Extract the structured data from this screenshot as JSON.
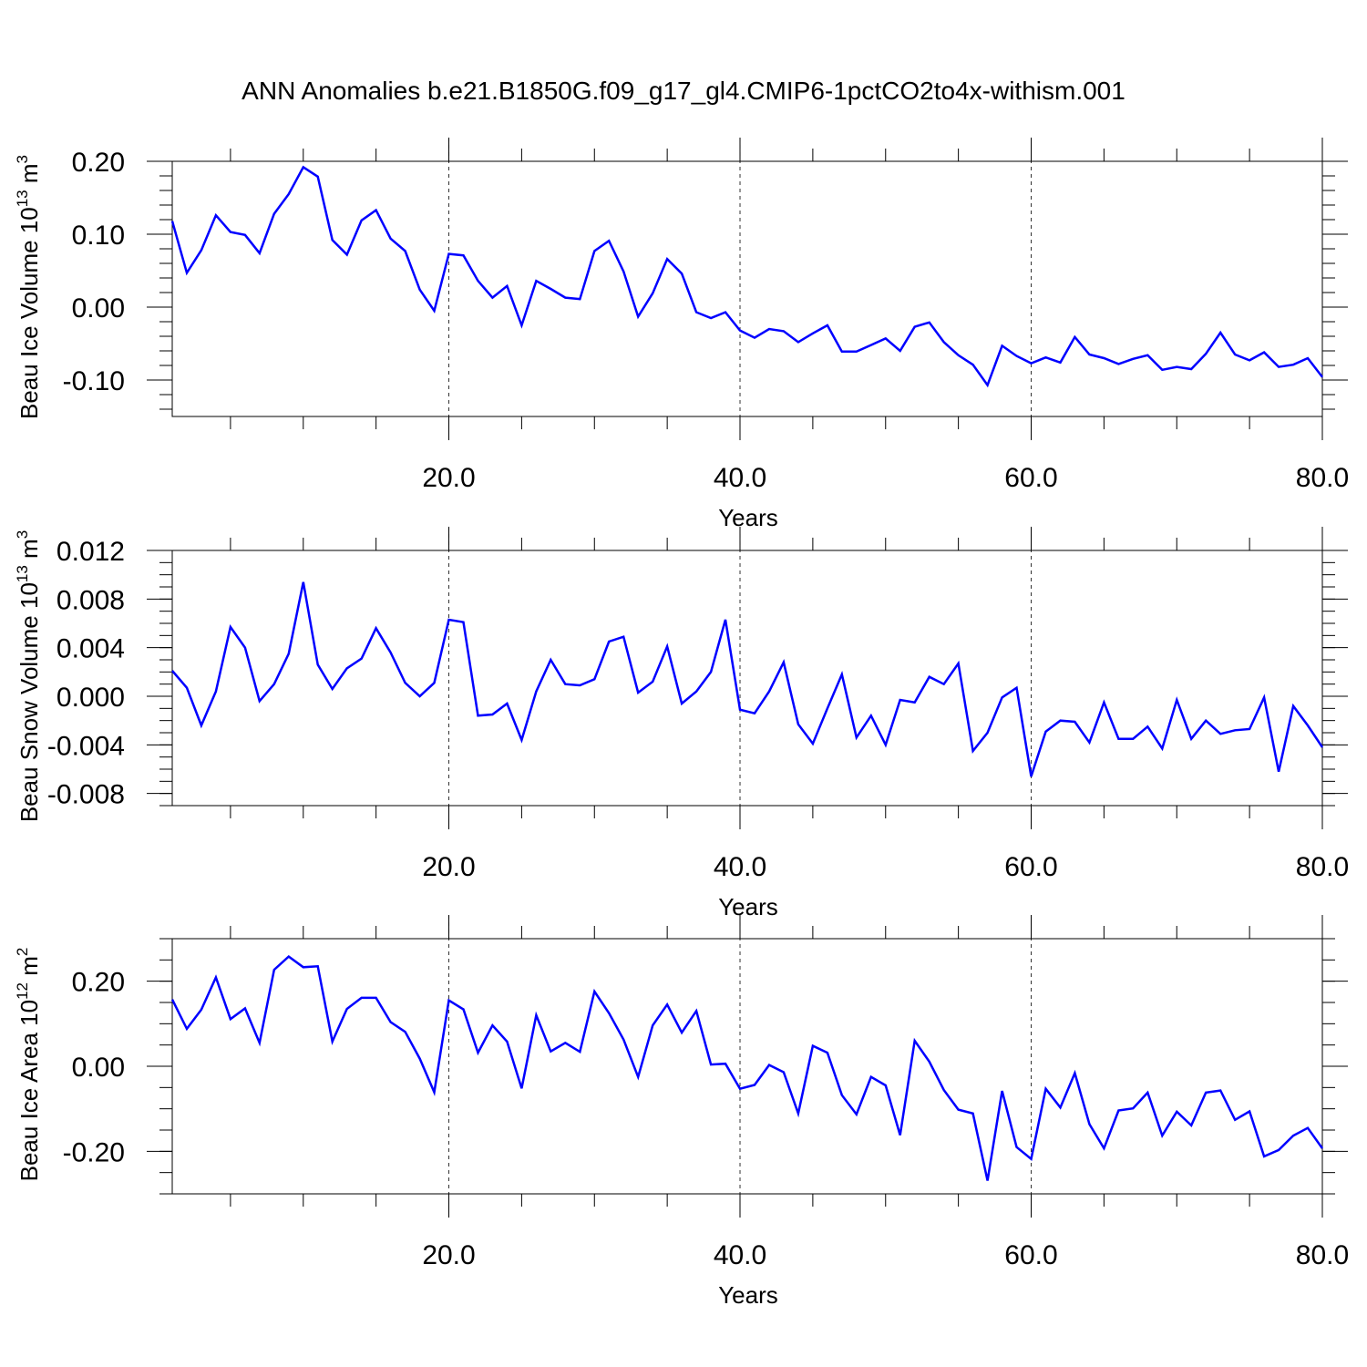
{
  "title": "ANN Anomalies b.e21.B1850G.f09_g17_gl4.CMIP6-1pctCO2to4x-withism.001",
  "colors": {
    "series": "#0000ff",
    "axis": "#000000",
    "grid": "#333333"
  },
  "chart_data": [
    {
      "type": "line",
      "ylabel": "Beau Ice Volume 10",
      "ylabel_exp": "13",
      "ylabel_unit": " m",
      "ylabel_unit_exp": "3",
      "xlabel": "Years",
      "xlim": [
        1,
        80
      ],
      "ylim": [
        -0.15,
        0.2
      ],
      "x_ticks": [
        20,
        40,
        60,
        80
      ],
      "x_tick_labels": [
        "20.0",
        "40.0",
        "60.0",
        "80.0"
      ],
      "y_ticks": [
        0.2,
        0.1,
        0.0,
        -0.1
      ],
      "y_tick_labels": [
        "0.20",
        "0.10",
        "0.00",
        "-0.10"
      ],
      "y_minor_step": 0.02,
      "x_minor_step": 5,
      "vgrid": [
        20,
        40,
        60
      ],
      "x": [
        1,
        2,
        3,
        4,
        5,
        6,
        7,
        8,
        9,
        10,
        11,
        12,
        13,
        14,
        15,
        16,
        17,
        18,
        19,
        20,
        21,
        22,
        23,
        24,
        25,
        26,
        27,
        28,
        29,
        30,
        31,
        32,
        33,
        34,
        35,
        36,
        37,
        38,
        39,
        40,
        41,
        42,
        43,
        44,
        45,
        46,
        47,
        48,
        49,
        50,
        51,
        52,
        53,
        54,
        55,
        56,
        57,
        58,
        59,
        60,
        61,
        62,
        63,
        64,
        65,
        66,
        67,
        68,
        69,
        70,
        71,
        72,
        73,
        74,
        75,
        76,
        77,
        78,
        79,
        80
      ],
      "values": [
        0.118,
        0.047,
        0.078,
        0.126,
        0.103,
        0.099,
        0.074,
        0.128,
        0.155,
        0.192,
        0.179,
        0.092,
        0.072,
        0.119,
        0.133,
        0.094,
        0.077,
        0.024,
        -0.005,
        0.073,
        0.071,
        0.036,
        0.013,
        0.029,
        -0.025,
        0.036,
        0.025,
        0.013,
        0.011,
        0.077,
        0.091,
        0.049,
        -0.013,
        0.019,
        0.066,
        0.046,
        -0.007,
        -0.015,
        -0.007,
        -0.032,
        -0.042,
        -0.03,
        -0.033,
        -0.048,
        -0.036,
        -0.025,
        -0.061,
        -0.061,
        -0.052,
        -0.043,
        -0.06,
        -0.027,
        -0.021,
        -0.048,
        -0.066,
        -0.079,
        -0.107,
        -0.053,
        -0.067,
        -0.077,
        -0.069,
        -0.076,
        -0.041,
        -0.065,
        -0.07,
        -0.078,
        -0.071,
        -0.066,
        -0.086,
        -0.082,
        -0.085,
        -0.064,
        -0.035,
        -0.065,
        -0.073,
        -0.062,
        -0.082,
        -0.079,
        -0.07,
        -0.096
      ]
    },
    {
      "type": "line",
      "ylabel": "Beau Snow Volume 10",
      "ylabel_exp": "13",
      "ylabel_unit": " m",
      "ylabel_unit_exp": "3",
      "xlabel": "Years",
      "xlim": [
        1,
        80
      ],
      "ylim": [
        -0.009,
        0.012
      ],
      "x_ticks": [
        20,
        40,
        60,
        80
      ],
      "x_tick_labels": [
        "20.0",
        "40.0",
        "60.0",
        "80.0"
      ],
      "y_ticks": [
        0.012,
        0.008,
        0.004,
        0.0,
        -0.004,
        -0.008
      ],
      "y_tick_labels": [
        "0.012",
        "0.008",
        "0.004",
        "0.000",
        "-0.004",
        "-0.008"
      ],
      "y_minor_step": 0.001,
      "x_minor_step": 5,
      "vgrid": [
        20,
        40,
        60
      ],
      "x": [
        1,
        2,
        3,
        4,
        5,
        6,
        7,
        8,
        9,
        10,
        11,
        12,
        13,
        14,
        15,
        16,
        17,
        18,
        19,
        20,
        21,
        22,
        23,
        24,
        25,
        26,
        27,
        28,
        29,
        30,
        31,
        32,
        33,
        34,
        35,
        36,
        37,
        38,
        39,
        40,
        41,
        42,
        43,
        44,
        45,
        46,
        47,
        48,
        49,
        50,
        51,
        52,
        53,
        54,
        55,
        56,
        57,
        58,
        59,
        60,
        61,
        62,
        63,
        64,
        65,
        66,
        67,
        68,
        69,
        70,
        71,
        72,
        73,
        74,
        75,
        76,
        77,
        78,
        79,
        80
      ],
      "values": [
        0.0021,
        0.0007,
        -0.0024,
        0.0004,
        0.0057,
        0.004,
        -0.0004,
        0.001,
        0.0035,
        0.0094,
        0.0026,
        0.0006,
        0.0023,
        0.0031,
        0.0056,
        0.0036,
        0.0011,
        0.0,
        0.0011,
        0.0063,
        0.0061,
        -0.0016,
        -0.0015,
        -0.0006,
        -0.0036,
        0.0004,
        0.003,
        0.001,
        0.0009,
        0.0014,
        0.0045,
        0.0049,
        0.0003,
        0.0012,
        0.0041,
        -0.0006,
        0.0004,
        0.002,
        0.0063,
        -0.0011,
        -0.0014,
        0.0004,
        0.0028,
        -0.0023,
        -0.0039,
        -0.001,
        0.0018,
        -0.0034,
        -0.0016,
        -0.004,
        -0.0003,
        -0.0005,
        0.0016,
        0.001,
        0.0027,
        -0.0045,
        -0.003,
        -0.0001,
        0.0007,
        -0.0066,
        -0.0029,
        -0.002,
        -0.0021,
        -0.0038,
        -0.0005,
        -0.0035,
        -0.0035,
        -0.0025,
        -0.0043,
        -0.0003,
        -0.0035,
        -0.002,
        -0.0031,
        -0.0028,
        -0.0027,
        -0.0001,
        -0.0062,
        -0.0008,
        -0.0024,
        -0.0042
      ]
    },
    {
      "type": "line",
      "ylabel": "Beau Ice Area 10",
      "ylabel_exp": "12",
      "ylabel_unit": " m",
      "ylabel_unit_exp": "2",
      "xlabel": "Years",
      "xlim": [
        1,
        80
      ],
      "ylim": [
        -0.3,
        0.3
      ],
      "x_ticks": [
        20,
        40,
        60,
        80
      ],
      "x_tick_labels": [
        "20.0",
        "40.0",
        "60.0",
        "80.0"
      ],
      "y_ticks": [
        0.2,
        0.0,
        -0.2
      ],
      "y_tick_labels": [
        "0.20",
        "0.00",
        "-0.20"
      ],
      "y_minor_step": 0.05,
      "x_minor_step": 5,
      "vgrid": [
        20,
        40,
        60
      ],
      "x": [
        1,
        2,
        3,
        4,
        5,
        6,
        7,
        8,
        9,
        10,
        11,
        12,
        13,
        14,
        15,
        16,
        17,
        18,
        19,
        20,
        21,
        22,
        23,
        24,
        25,
        26,
        27,
        28,
        29,
        30,
        31,
        32,
        33,
        34,
        35,
        36,
        37,
        38,
        39,
        40,
        41,
        42,
        43,
        44,
        45,
        46,
        47,
        48,
        49,
        50,
        51,
        52,
        53,
        54,
        55,
        56,
        57,
        58,
        59,
        60,
        61,
        62,
        63,
        64,
        65,
        66,
        67,
        68,
        69,
        70,
        71,
        72,
        73,
        74,
        75,
        76,
        77,
        78,
        79,
        80
      ],
      "values": [
        0.157,
        0.088,
        0.133,
        0.209,
        0.111,
        0.136,
        0.055,
        0.227,
        0.258,
        0.233,
        0.235,
        0.058,
        0.135,
        0.161,
        0.161,
        0.104,
        0.081,
        0.018,
        -0.061,
        0.155,
        0.134,
        0.032,
        0.096,
        0.058,
        -0.052,
        0.12,
        0.035,
        0.055,
        0.034,
        0.176,
        0.125,
        0.063,
        -0.025,
        0.096,
        0.145,
        0.079,
        0.13,
        0.004,
        0.006,
        -0.053,
        -0.044,
        0.003,
        -0.014,
        -0.111,
        0.048,
        0.032,
        -0.068,
        -0.113,
        -0.025,
        -0.045,
        -0.162,
        0.06,
        0.011,
        -0.056,
        -0.102,
        -0.111,
        -0.269,
        -0.058,
        -0.19,
        -0.218,
        -0.053,
        -0.097,
        -0.016,
        -0.136,
        -0.193,
        -0.104,
        -0.099,
        -0.062,
        -0.163,
        -0.107,
        -0.139,
        -0.062,
        -0.057,
        -0.126,
        -0.106,
        -0.212,
        -0.197,
        -0.163,
        -0.145,
        -0.193
      ]
    }
  ]
}
